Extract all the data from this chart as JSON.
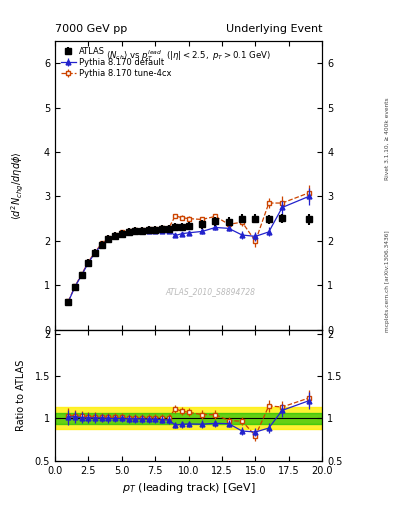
{
  "title_left": "7000 GeV pp",
  "title_right": "Underlying Event",
  "xlabel": "p_{T} (leading track) [GeV]",
  "ylabel_main": "$\\langle d^2 N_{chg}/d\\eta d\\phi\\rangle$",
  "ylabel_ratio": "Ratio to ATLAS",
  "right_label_top": "Rivet 3.1.10, ≥ 400k events",
  "right_label_bot": "mcplots.cern.ch [arXiv:1306.3436]",
  "watermark": "ATLAS_2010_S8894728",
  "atlas_x": [
    1.0,
    1.5,
    2.0,
    2.5,
    3.0,
    3.5,
    4.0,
    4.5,
    5.0,
    5.5,
    6.0,
    6.5,
    7.0,
    7.5,
    8.0,
    8.5,
    9.0,
    9.5,
    10.0,
    11.0,
    12.0,
    13.0,
    14.0,
    15.0,
    16.0,
    17.0,
    19.0
  ],
  "atlas_y": [
    0.62,
    0.95,
    1.22,
    1.5,
    1.72,
    1.91,
    2.03,
    2.1,
    2.16,
    2.2,
    2.22,
    2.23,
    2.24,
    2.25,
    2.26,
    2.26,
    2.3,
    2.32,
    2.33,
    2.37,
    2.44,
    2.43,
    2.5,
    2.5,
    2.48,
    2.51,
    2.48
  ],
  "atlas_yerr": [
    0.05,
    0.06,
    0.07,
    0.08,
    0.09,
    0.09,
    0.09,
    0.09,
    0.09,
    0.09,
    0.09,
    0.09,
    0.09,
    0.09,
    0.09,
    0.09,
    0.09,
    0.09,
    0.09,
    0.1,
    0.1,
    0.1,
    0.1,
    0.1,
    0.1,
    0.1,
    0.12
  ],
  "pd_x": [
    1.0,
    1.5,
    2.0,
    2.5,
    3.0,
    3.5,
    4.0,
    4.5,
    5.0,
    5.5,
    6.0,
    6.5,
    7.0,
    7.5,
    8.0,
    8.5,
    9.0,
    9.5,
    10.0,
    11.0,
    12.0,
    13.0,
    14.0,
    15.0,
    16.0,
    17.0,
    19.0
  ],
  "pd_y": [
    0.63,
    0.97,
    1.23,
    1.51,
    1.73,
    1.92,
    2.03,
    2.1,
    2.16,
    2.19,
    2.21,
    2.22,
    2.22,
    2.23,
    2.23,
    2.22,
    2.12,
    2.16,
    2.18,
    2.21,
    2.3,
    2.28,
    2.13,
    2.1,
    2.2,
    2.75,
    3.0
  ],
  "pd_yerr": [
    0.02,
    0.03,
    0.03,
    0.04,
    0.04,
    0.04,
    0.04,
    0.04,
    0.04,
    0.04,
    0.04,
    0.04,
    0.04,
    0.04,
    0.04,
    0.04,
    0.04,
    0.04,
    0.04,
    0.05,
    0.05,
    0.05,
    0.08,
    0.1,
    0.1,
    0.15,
    0.2
  ],
  "pt_x": [
    1.0,
    1.5,
    2.0,
    2.5,
    3.0,
    3.5,
    4.0,
    4.5,
    5.0,
    5.5,
    6.0,
    6.5,
    7.0,
    7.5,
    8.0,
    8.5,
    9.0,
    9.5,
    10.0,
    11.0,
    12.0,
    13.0,
    14.0,
    15.0,
    16.0,
    17.0,
    19.0
  ],
  "pt_y": [
    0.64,
    0.98,
    1.25,
    1.53,
    1.75,
    1.94,
    2.06,
    2.13,
    2.19,
    2.22,
    2.24,
    2.25,
    2.26,
    2.27,
    2.28,
    2.28,
    2.56,
    2.52,
    2.5,
    2.48,
    2.55,
    2.37,
    2.42,
    1.99,
    2.85,
    2.85,
    3.08
  ],
  "pt_yerr": [
    0.02,
    0.03,
    0.03,
    0.04,
    0.04,
    0.04,
    0.04,
    0.04,
    0.04,
    0.04,
    0.04,
    0.04,
    0.04,
    0.04,
    0.04,
    0.04,
    0.05,
    0.05,
    0.05,
    0.05,
    0.06,
    0.06,
    0.08,
    0.12,
    0.12,
    0.15,
    0.18
  ],
  "green_band": [
    0.93,
    1.07
  ],
  "yellow_band": [
    0.87,
    1.13
  ],
  "xlim": [
    0,
    20
  ],
  "ylim_main": [
    0,
    6.5
  ],
  "ylim_ratio": [
    0.5,
    2.05
  ],
  "atlas_color": "#000000",
  "pd_color": "#2222cc",
  "pt_color": "#cc4400",
  "yticks_main": [
    0,
    1,
    2,
    3,
    4,
    5,
    6
  ],
  "yticks_ratio": [
    0.5,
    1.0,
    1.5,
    2.0
  ]
}
